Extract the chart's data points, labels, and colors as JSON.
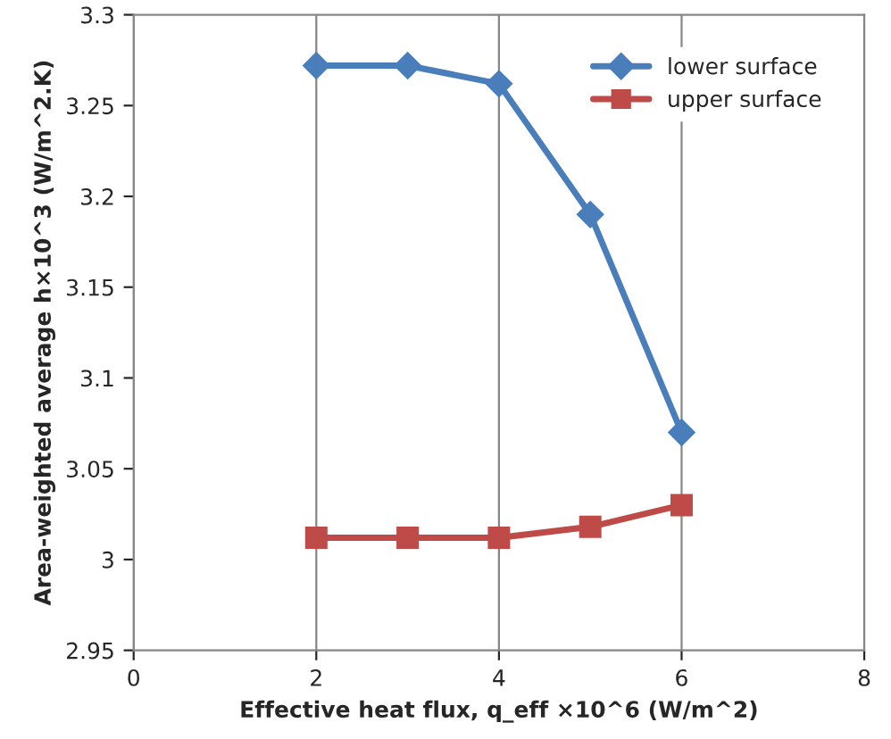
{
  "chart_data": {
    "type": "line",
    "xlabel": "Effective heat flux, q_eff ×10^6 (W/m^2)",
    "ylabel": "Area-weighted average h×10^3 (W/m^2.K)",
    "x": [
      2,
      3,
      4,
      5,
      6
    ],
    "series": [
      {
        "name": "lower surface",
        "color": "#4a7ebb",
        "marker": "diamond",
        "values": [
          3.272,
          3.272,
          3.262,
          3.19,
          3.07
        ]
      },
      {
        "name": "upper surface",
        "color": "#be4b48",
        "marker": "square",
        "values": [
          3.012,
          3.012,
          3.012,
          3.018,
          3.03
        ]
      }
    ],
    "xlim": [
      0,
      8
    ],
    "xticks": [
      0,
      2,
      4,
      6,
      8
    ],
    "ylim": [
      2.95,
      3.3
    ],
    "yticks": [
      2.95,
      3,
      3.05,
      3.1,
      3.15,
      3.2,
      3.25,
      3.3
    ],
    "grid": "x",
    "legend": "top right",
    "line_style": "solid"
  }
}
